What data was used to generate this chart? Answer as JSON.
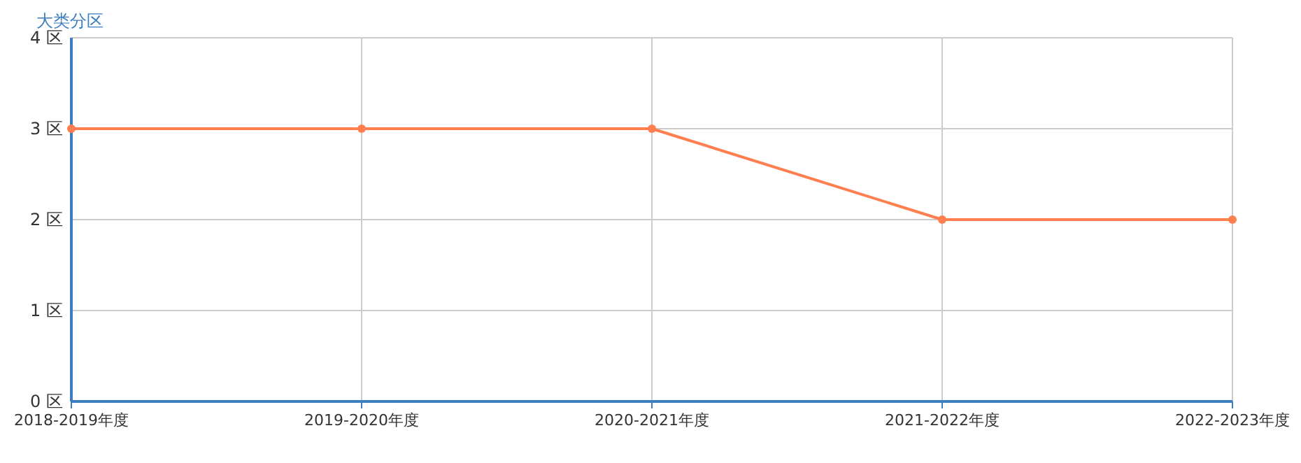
{
  "chart_data": {
    "type": "line",
    "ylabel": "大类分区",
    "categories": [
      "2018-2019年度",
      "2019-2020年度",
      "2020-2021年度",
      "2021-2022年度",
      "2022-2023年度"
    ],
    "series": [
      {
        "color": "#ff7f50",
        "values": [
          3,
          3,
          3,
          2,
          2
        ]
      }
    ],
    "ylim": [
      0,
      4
    ],
    "yticks": [
      {
        "value": 0,
        "label": "0 区"
      },
      {
        "value": 1,
        "label": "1 区"
      },
      {
        "value": 2,
        "label": "2 区"
      },
      {
        "value": 3,
        "label": "3 区"
      },
      {
        "value": 4,
        "label": "4 区"
      }
    ],
    "grid": true,
    "marker": "circle",
    "line_style": "solid"
  }
}
